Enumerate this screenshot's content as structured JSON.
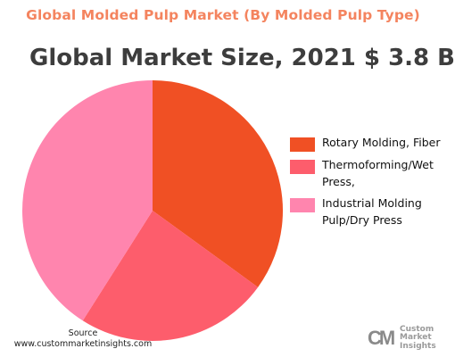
{
  "chart_data": {
    "type": "pie",
    "title": "Global Molded Pulp Market (By Molded Pulp Type)",
    "subtitle": "Global Market Size, 2021 $ 3.8 B",
    "legend_position": "right",
    "series": [
      {
        "name": "Rotary Molding, Fiber",
        "value": 35,
        "color": "#f05024"
      },
      {
        "name": "Thermoforming/Wet Press,",
        "value": 24,
        "color": "#fd5d6c"
      },
      {
        "name": "Industrial Molding Pulp/Dry Press",
        "value": 41,
        "color": "#ff85ae"
      }
    ]
  },
  "footer": {
    "source_label": "Source",
    "source_url": "www.custommarketinsights.com",
    "logo_mark": "CM",
    "logo_lines": [
      "Custom",
      "Market",
      "Insights"
    ]
  }
}
